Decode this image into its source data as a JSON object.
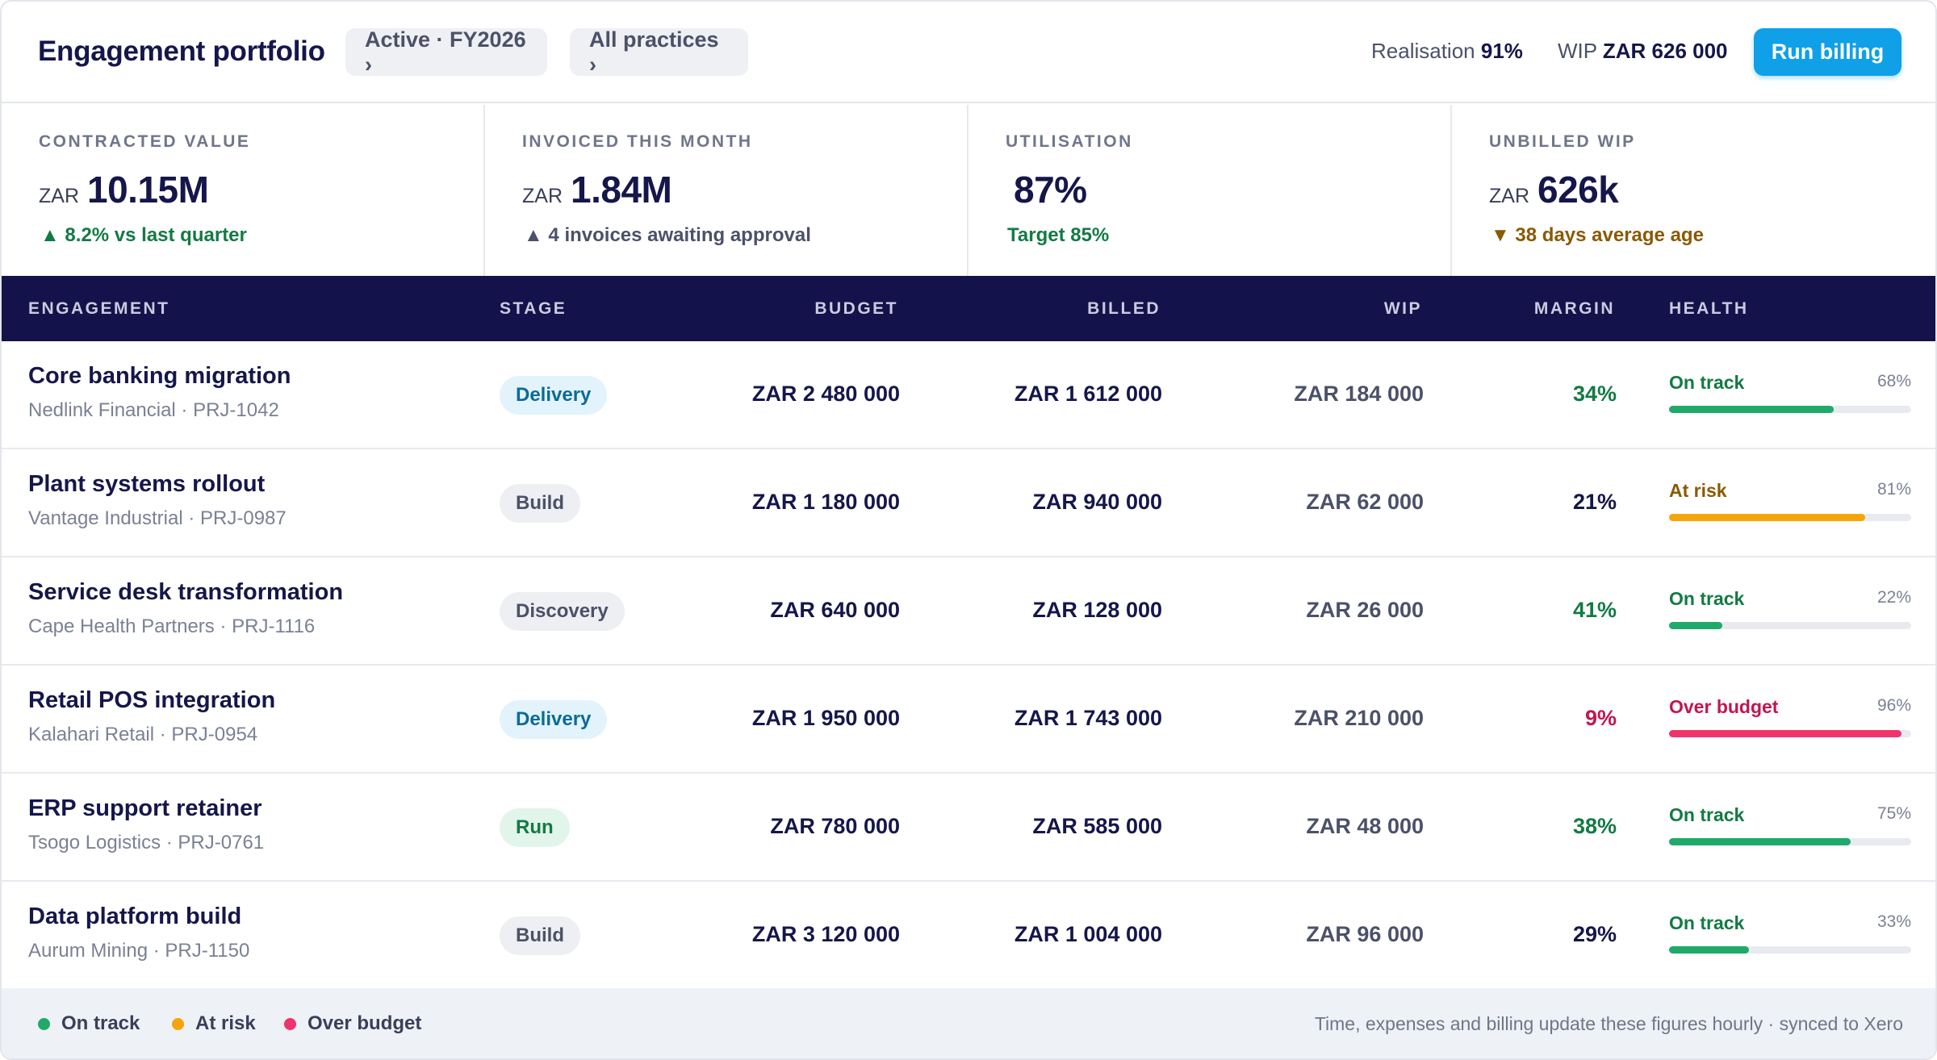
{
  "header": {
    "title": "Engagement portfolio",
    "period_filter": "Active · FY2026 ›",
    "practice_filter": "All practices ›",
    "realisation_label": "Realisation",
    "realisation_value": "91%",
    "wip_label": "WIP",
    "wip_value": "ZAR 626 000",
    "run_billing_label": "Run billing",
    "accent_color": "#0fa0e8"
  },
  "stats": [
    {
      "label": "CONTRACTED VALUE",
      "currency": "ZAR",
      "value": "10.15M",
      "sub": "▲ 8.2% vs last quarter",
      "tone": "green"
    },
    {
      "label": "INVOICED THIS MONTH",
      "currency": "ZAR",
      "value": "1.84M",
      "sub": "▲ 4 invoices awaiting approval",
      "tone": "grey"
    },
    {
      "label": "UTILISATION",
      "currency": "",
      "value": "87%",
      "sub": "Target 85%",
      "tone": "green"
    },
    {
      "label": "UNBILLED WIP",
      "currency": "ZAR",
      "value": "626k",
      "sub": "▼ 38 days average age",
      "tone": "amber"
    }
  ],
  "table": {
    "columns": {
      "engagement": "ENGAGEMENT",
      "stage": "STAGE",
      "budget": "BUDGET",
      "billed": "BILLED",
      "wip": "WIP",
      "margin": "MARGIN",
      "health": "HEALTH"
    },
    "rows": [
      {
        "name": "Core banking migration",
        "meta": "Nedlink Financial · PRJ-1042",
        "stage": "Delivery",
        "stage_type": "delivery",
        "budget": "ZAR 2 480 000",
        "billed": "ZAR 1 612 000",
        "wip": "ZAR 184 000",
        "margin": "34%",
        "margin_tone": "green",
        "health": "On track",
        "health_tone": "green",
        "progress": "68%"
      },
      {
        "name": "Plant systems rollout",
        "meta": "Vantage Industrial · PRJ-0987",
        "stage": "Build",
        "stage_type": "build",
        "budget": "ZAR 1 180 000",
        "billed": "ZAR 940 000",
        "wip": "ZAR 62 000",
        "margin": "21%",
        "margin_tone": "dark",
        "health": "At risk",
        "health_tone": "amber",
        "progress": "81%"
      },
      {
        "name": "Service desk transformation",
        "meta": "Cape Health Partners · PRJ-1116",
        "stage": "Discovery",
        "stage_type": "discovery",
        "budget": "ZAR 640 000",
        "billed": "ZAR 128 000",
        "wip": "ZAR 26 000",
        "margin": "41%",
        "margin_tone": "green",
        "health": "On track",
        "health_tone": "green",
        "progress": "22%"
      },
      {
        "name": "Retail POS integration",
        "meta": "Kalahari Retail · PRJ-0954",
        "stage": "Delivery",
        "stage_type": "delivery",
        "budget": "ZAR 1 950 000",
        "billed": "ZAR 1 743 000",
        "wip": "ZAR 210 000",
        "margin": "9%",
        "margin_tone": "red",
        "health": "Over budget",
        "health_tone": "red",
        "progress": "96%"
      },
      {
        "name": "ERP support retainer",
        "meta": "Tsogo Logistics · PRJ-0761",
        "stage": "Run",
        "stage_type": "run",
        "budget": "ZAR 780 000",
        "billed": "ZAR 585 000",
        "wip": "ZAR 48 000",
        "margin": "38%",
        "margin_tone": "green",
        "health": "On track",
        "health_tone": "green",
        "progress": "75%"
      },
      {
        "name": "Data platform build",
        "meta": "Aurum Mining · PRJ-1150",
        "stage": "Build",
        "stage_type": "build",
        "budget": "ZAR 3 120 000",
        "billed": "ZAR 1 004 000",
        "wip": "ZAR 96 000",
        "margin": "29%",
        "margin_tone": "dark",
        "health": "On track",
        "health_tone": "green",
        "progress": "33%"
      }
    ]
  },
  "footer": {
    "legend": [
      {
        "label": "On track",
        "color": "#1faa6a"
      },
      {
        "label": "At risk",
        "color": "#f5a50a"
      },
      {
        "label": "Over budget",
        "color": "#f0336b"
      }
    ],
    "note": "Time, expenses and billing update these figures hourly · synced to Xero"
  }
}
